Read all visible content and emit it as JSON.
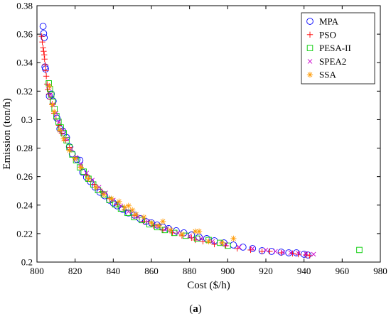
{
  "caption": {
    "open": "(",
    "letter": "a",
    "close": ")"
  },
  "chart_data": {
    "type": "scatter",
    "title": "",
    "xlabel": "Cost ($/h)",
    "ylabel": "Emission (ton/h)",
    "xlim": [
      800,
      980
    ],
    "ylim": [
      0.2,
      0.38
    ],
    "xticks": [
      800,
      820,
      840,
      860,
      880,
      900,
      920,
      940,
      960,
      980
    ],
    "yticks": [
      0.2,
      0.22,
      0.24,
      0.26,
      0.28,
      0.3,
      0.32,
      0.34,
      0.36,
      0.38
    ],
    "ytick_labels": [
      "0.2",
      "0.22",
      "0.24",
      "0.26",
      "0.28",
      "0.3",
      "0.32",
      "0.34",
      "0.36",
      "0.38"
    ],
    "grid": false,
    "legend_position": "top-right",
    "series": [
      {
        "name": "MPA",
        "color": "#0000ff",
        "marker": "circle",
        "points": [
          [
            803.2,
            0.3655
          ],
          [
            803.5,
            0.3605
          ],
          [
            803.8,
            0.3575
          ],
          [
            804.2,
            0.337
          ],
          [
            804.5,
            0.3355
          ],
          [
            806.5,
            0.3165
          ],
          [
            807.5,
            0.318
          ],
          [
            808.5,
            0.313
          ],
          [
            810.5,
            0.301
          ],
          [
            812,
            0.2935
          ],
          [
            813.5,
            0.292
          ],
          [
            815.5,
            0.2875
          ],
          [
            817,
            0.281
          ],
          [
            818.5,
            0.276
          ],
          [
            821,
            0.272
          ],
          [
            822.5,
            0.2715
          ],
          [
            824,
            0.263
          ],
          [
            826,
            0.2595
          ],
          [
            828,
            0.2565
          ],
          [
            830.5,
            0.2525
          ],
          [
            833,
            0.249
          ],
          [
            835.5,
            0.2465
          ],
          [
            838,
            0.2435
          ],
          [
            840,
            0.2415
          ],
          [
            842,
            0.2395
          ],
          [
            845,
            0.237
          ],
          [
            848,
            0.2345
          ],
          [
            851,
            0.233
          ],
          [
            854,
            0.2305
          ],
          [
            857,
            0.2285
          ],
          [
            860,
            0.2275
          ],
          [
            863,
            0.226
          ],
          [
            866,
            0.2245
          ],
          [
            869,
            0.2235
          ],
          [
            873,
            0.222
          ],
          [
            877,
            0.2205
          ],
          [
            881,
            0.219
          ],
          [
            885,
            0.2175
          ],
          [
            889,
            0.2165
          ],
          [
            893,
            0.215
          ],
          [
            898,
            0.2135
          ],
          [
            903,
            0.212
          ],
          [
            908,
            0.2105
          ],
          [
            913,
            0.2095
          ],
          [
            918,
            0.208
          ],
          [
            923,
            0.2075
          ],
          [
            928,
            0.207
          ],
          [
            932,
            0.2065
          ],
          [
            936,
            0.2065
          ],
          [
            940,
            0.2055
          ],
          [
            942,
            0.205
          ]
        ]
      },
      {
        "name": "PSO",
        "color": "#ff0000",
        "marker": "plus",
        "points": [
          [
            802.5,
            0.3585
          ],
          [
            802.8,
            0.3545
          ],
          [
            803.2,
            0.3505
          ],
          [
            803.5,
            0.348
          ],
          [
            803.8,
            0.3455
          ],
          [
            804,
            0.3425
          ],
          [
            804.3,
            0.3385
          ],
          [
            804.6,
            0.3345
          ],
          [
            804.9,
            0.3305
          ],
          [
            805.3,
            0.325
          ],
          [
            805.8,
            0.321
          ],
          [
            806.3,
            0.318
          ],
          [
            807,
            0.3145
          ],
          [
            808,
            0.311
          ],
          [
            809,
            0.3045
          ],
          [
            810,
            0.3005
          ],
          [
            811.5,
            0.296
          ],
          [
            813,
            0.2905
          ],
          [
            815,
            0.2855
          ],
          [
            817,
            0.2805
          ],
          [
            820,
            0.2735
          ],
          [
            823,
            0.2665
          ],
          [
            826,
            0.261
          ],
          [
            830,
            0.2545
          ],
          [
            834,
            0.2495
          ],
          [
            838,
            0.2445
          ],
          [
            842,
            0.2405
          ],
          [
            846,
            0.2365
          ],
          [
            851,
            0.2325
          ],
          [
            856,
            0.2285
          ],
          [
            861,
            0.2255
          ],
          [
            866,
            0.2225
          ],
          [
            871,
            0.2205
          ],
          [
            876,
            0.2185
          ],
          [
            881,
            0.217
          ],
          [
            883,
            0.2155
          ],
          [
            887,
            0.2145
          ],
          [
            893,
            0.2125
          ],
          [
            899,
            0.2115
          ],
          [
            905,
            0.2095
          ],
          [
            912,
            0.2085
          ],
          [
            918,
            0.2075
          ],
          [
            922,
            0.2075
          ],
          [
            928,
            0.2065
          ],
          [
            934,
            0.206
          ],
          [
            937,
            0.2055
          ],
          [
            941,
            0.205
          ],
          [
            943,
            0.2045
          ]
        ]
      },
      {
        "name": "PESA-II",
        "color": "#00cc00",
        "marker": "square",
        "points": [
          [
            806.2,
            0.3255
          ],
          [
            806.8,
            0.3215
          ],
          [
            807.5,
            0.3175
          ],
          [
            808.3,
            0.3125
          ],
          [
            809.2,
            0.3075
          ],
          [
            810.2,
            0.3025
          ],
          [
            811.3,
            0.2985
          ],
          [
            812.5,
            0.2945
          ],
          [
            814,
            0.2905
          ],
          [
            815.5,
            0.2855
          ],
          [
            817,
            0.2805
          ],
          [
            818.5,
            0.2755
          ],
          [
            820.5,
            0.2715
          ],
          [
            822.5,
            0.2665
          ],
          [
            824.5,
            0.2635
          ],
          [
            827,
            0.2585
          ],
          [
            829.5,
            0.2545
          ],
          [
            832,
            0.2505
          ],
          [
            835,
            0.2475
          ],
          [
            838,
            0.2435
          ],
          [
            841,
            0.2405
          ],
          [
            844,
            0.2375
          ],
          [
            847.5,
            0.2345
          ],
          [
            851,
            0.2315
          ],
          [
            855,
            0.2295
          ],
          [
            859,
            0.2265
          ],
          [
            863,
            0.2245
          ],
          [
            867,
            0.2225
          ],
          [
            872,
            0.2205
          ],
          [
            878,
            0.2185
          ],
          [
            884,
            0.2165
          ],
          [
            890,
            0.2155
          ],
          [
            896,
            0.2135
          ],
          [
            900,
            0.2115
          ],
          [
            969,
            0.2085
          ]
        ]
      },
      {
        "name": "SPEA2",
        "color": "#cc00cc",
        "marker": "x",
        "points": [
          [
            806,
            0.3235
          ],
          [
            807,
            0.3175
          ],
          [
            808.5,
            0.3105
          ],
          [
            810,
            0.3045
          ],
          [
            811.5,
            0.2985
          ],
          [
            813.5,
            0.2925
          ],
          [
            815.5,
            0.2865
          ],
          [
            818,
            0.2795
          ],
          [
            820.5,
            0.2735
          ],
          [
            823,
            0.2685
          ],
          [
            826,
            0.2625
          ],
          [
            829,
            0.2575
          ],
          [
            832.5,
            0.2525
          ],
          [
            836,
            0.2485
          ],
          [
            840,
            0.2435
          ],
          [
            844,
            0.2395
          ],
          [
            848,
            0.2355
          ],
          [
            853,
            0.2315
          ],
          [
            858,
            0.2285
          ],
          [
            863,
            0.2255
          ],
          [
            868,
            0.2235
          ],
          [
            874,
            0.2205
          ],
          [
            880,
            0.2185
          ],
          [
            886,
            0.2165
          ],
          [
            892,
            0.2145
          ],
          [
            899,
            0.2125
          ],
          [
            906,
            0.2105
          ],
          [
            913,
            0.2095
          ],
          [
            920,
            0.2085
          ],
          [
            925,
            0.2075
          ],
          [
            929,
            0.2068
          ],
          [
            933,
            0.2065
          ],
          [
            937,
            0.2062
          ],
          [
            941,
            0.2058
          ],
          [
            945,
            0.2055
          ]
        ]
      },
      {
        "name": "SSA",
        "color": "#ff9900",
        "marker": "star",
        "points": [
          [
            806.5,
            0.3235
          ],
          [
            808,
            0.3105
          ],
          [
            809,
            0.3055
          ],
          [
            812,
            0.2925
          ],
          [
            814,
            0.2865
          ],
          [
            817,
            0.2785
          ],
          [
            820,
            0.2725
          ],
          [
            823,
            0.2665
          ],
          [
            827,
            0.2585
          ],
          [
            831,
            0.2525
          ],
          [
            835,
            0.2475
          ],
          [
            839,
            0.2445
          ],
          [
            843,
            0.2425
          ],
          [
            846,
            0.2385
          ],
          [
            848,
            0.2395
          ],
          [
            850,
            0.2365
          ],
          [
            852,
            0.2335
          ],
          [
            856,
            0.2315
          ],
          [
            860,
            0.2275
          ],
          [
            864,
            0.2255
          ],
          [
            866,
            0.2285
          ],
          [
            870,
            0.2225
          ],
          [
            876,
            0.2195
          ],
          [
            883,
            0.2215
          ],
          [
            885,
            0.2215
          ],
          [
            890,
            0.2145
          ],
          [
            897,
            0.2135
          ],
          [
            903,
            0.2165
          ]
        ]
      }
    ]
  }
}
